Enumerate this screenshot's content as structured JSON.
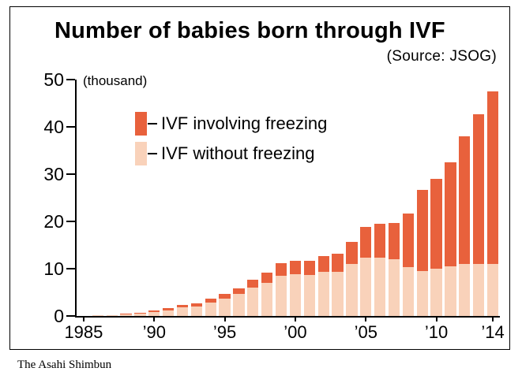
{
  "figure": {
    "title": "Number of babies born through IVF",
    "source": "(Source: JSOG)",
    "unit_label": "(thousand)",
    "caption": "The Asahi Shimbun"
  },
  "legend": [
    {
      "label": "IVF involving freezing",
      "color": "#e8613c"
    },
    {
      "label": "IVF without freezing",
      "color": "#f9d2ba"
    }
  ],
  "chart_data": {
    "type": "bar",
    "stacked": true,
    "title": "Number of babies born through IVF",
    "ylabel": "(thousand)",
    "ylim": [
      0,
      50
    ],
    "yticks": [
      0,
      10,
      20,
      30,
      40,
      50
    ],
    "x": [
      1985,
      1986,
      1987,
      1988,
      1989,
      1990,
      1991,
      1992,
      1993,
      1994,
      1995,
      1996,
      1997,
      1998,
      1999,
      2000,
      2001,
      2002,
      2003,
      2004,
      2005,
      2006,
      2007,
      2008,
      2009,
      2010,
      2011,
      2012,
      2013,
      2014
    ],
    "xticks": [
      {
        "index": 0,
        "label": "1985"
      },
      {
        "index": 5,
        "label": "’90"
      },
      {
        "index": 10,
        "label": "’95"
      },
      {
        "index": 15,
        "label": "’00"
      },
      {
        "index": 20,
        "label": "’05"
      },
      {
        "index": 25,
        "label": "’10"
      },
      {
        "index": 29,
        "label": "’14"
      }
    ],
    "series": [
      {
        "name": "IVF without freezing",
        "color": "#f9d2ba",
        "values": [
          0.05,
          0.1,
          0.15,
          0.3,
          0.5,
          0.8,
          1.2,
          1.9,
          2.0,
          2.8,
          3.6,
          4.6,
          6.0,
          7.0,
          8.5,
          8.8,
          8.7,
          9.3,
          9.4,
          11.0,
          12.3,
          12.3,
          12.0,
          10.3,
          9.5,
          10.0,
          10.5,
          11.0,
          11.0,
          11.0
        ]
      },
      {
        "name": "IVF involving freezing",
        "color": "#e8613c",
        "values": [
          0.0,
          0.05,
          0.1,
          0.15,
          0.2,
          0.3,
          0.4,
          0.5,
          0.6,
          0.8,
          1.0,
          1.3,
          1.6,
          2.1,
          2.6,
          2.8,
          2.9,
          3.3,
          3.7,
          4.6,
          6.6,
          7.2,
          7.6,
          11.4,
          17.2,
          19.0,
          22.0,
          27.0,
          31.6,
          36.5
        ]
      }
    ],
    "legend_position": "upper-left-inside"
  }
}
